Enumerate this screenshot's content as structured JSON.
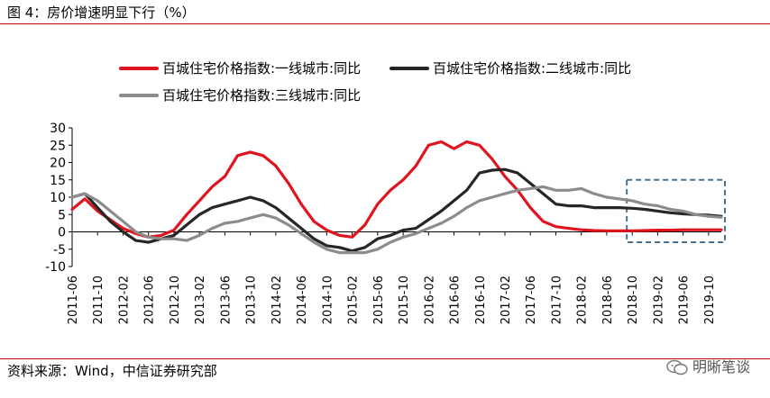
{
  "figure": {
    "title": "图 4：房价增速明显下行（%）",
    "source": "资料来源：Wind，中信证券研究部",
    "watermark": "明晰笔谈"
  },
  "chart_data": {
    "type": "line",
    "title": "",
    "xlabel": "",
    "ylabel": "",
    "ylim": [
      -10,
      30
    ],
    "yticks": [
      -10,
      -5,
      0,
      5,
      10,
      15,
      20,
      25,
      30
    ],
    "xrange": [
      "2011-06",
      "2019-12"
    ],
    "xticks": [
      "2011-06",
      "2011-10",
      "2012-02",
      "2012-06",
      "2012-10",
      "2013-02",
      "2013-06",
      "2013-10",
      "2014-02",
      "2014-06",
      "2014-10",
      "2015-02",
      "2015-06",
      "2015-10",
      "2016-02",
      "2016-06",
      "2016-10",
      "2017-02",
      "2017-06",
      "2017-10",
      "2018-02",
      "2018-06",
      "2018-10",
      "2019-02",
      "2019-06",
      "2019-10"
    ],
    "grid": false,
    "legend_position": "top",
    "highlight_box": {
      "x_from": "2018-10",
      "x_to": "2019-12",
      "y_from": -3,
      "y_to": 15,
      "style": "dashed",
      "color": "#4a7090"
    },
    "series": [
      {
        "name": "百城住宅价格指数:一线城市:同比",
        "color": "#e0141e",
        "x": [
          "2011-06",
          "2011-08",
          "2011-10",
          "2011-12",
          "2012-02",
          "2012-04",
          "2012-06",
          "2012-08",
          "2012-10",
          "2012-12",
          "2013-02",
          "2013-04",
          "2013-06",
          "2013-08",
          "2013-10",
          "2013-12",
          "2014-02",
          "2014-04",
          "2014-06",
          "2014-08",
          "2014-10",
          "2014-12",
          "2015-02",
          "2015-04",
          "2015-06",
          "2015-08",
          "2015-10",
          "2015-12",
          "2016-02",
          "2016-04",
          "2016-06",
          "2016-08",
          "2016-10",
          "2016-12",
          "2017-02",
          "2017-04",
          "2017-06",
          "2017-08",
          "2017-10",
          "2017-12",
          "2018-02",
          "2018-04",
          "2018-06",
          "2018-08",
          "2018-10",
          "2018-12",
          "2019-02",
          "2019-04",
          "2019-06",
          "2019-08",
          "2019-10",
          "2019-12"
        ],
        "values": [
          6.5,
          9.5,
          6.0,
          3.5,
          1.0,
          -0.5,
          -1.5,
          -1.0,
          0.5,
          5.0,
          9.0,
          13.0,
          16.0,
          22.0,
          23.0,
          22.0,
          19.0,
          14.0,
          8.0,
          3.0,
          0.5,
          -1.0,
          -1.5,
          2.0,
          8.0,
          12.0,
          15.0,
          19.0,
          25.0,
          26.0,
          24.0,
          26.0,
          25.0,
          21.0,
          16.0,
          12.0,
          7.0,
          3.0,
          1.5,
          1.0,
          0.6,
          0.4,
          0.3,
          0.3,
          0.3,
          0.4,
          0.5,
          0.5,
          0.6,
          0.6,
          0.6,
          0.6
        ]
      },
      {
        "name": "百城住宅价格指数:二线城市:同比",
        "color": "#262626",
        "x": [
          "2011-06",
          "2011-08",
          "2011-10",
          "2011-12",
          "2012-02",
          "2012-04",
          "2012-06",
          "2012-08",
          "2012-10",
          "2012-12",
          "2013-02",
          "2013-04",
          "2013-06",
          "2013-08",
          "2013-10",
          "2013-12",
          "2014-02",
          "2014-04",
          "2014-06",
          "2014-08",
          "2014-10",
          "2014-12",
          "2015-02",
          "2015-04",
          "2015-06",
          "2015-08",
          "2015-10",
          "2015-12",
          "2016-02",
          "2016-04",
          "2016-06",
          "2016-08",
          "2016-10",
          "2016-12",
          "2017-02",
          "2017-04",
          "2017-06",
          "2017-08",
          "2017-10",
          "2017-12",
          "2018-02",
          "2018-04",
          "2018-06",
          "2018-08",
          "2018-10",
          "2018-12",
          "2019-02",
          "2019-04",
          "2019-06",
          "2019-08",
          "2019-10",
          "2019-12"
        ],
        "values": [
          10.0,
          11.0,
          7.0,
          3.0,
          0.0,
          -2.5,
          -3.0,
          -2.0,
          -1.0,
          2.0,
          5.0,
          7.0,
          8.0,
          9.0,
          10.0,
          9.0,
          7.0,
          4.0,
          1.0,
          -2.0,
          -4.0,
          -4.5,
          -5.5,
          -4.5,
          -2.0,
          -1.0,
          0.5,
          1.0,
          3.5,
          6.0,
          9.0,
          12.0,
          17.0,
          17.8,
          18.0,
          17.0,
          14.0,
          11.0,
          8.0,
          7.5,
          7.5,
          7.0,
          7.0,
          7.0,
          6.8,
          6.5,
          6.0,
          5.5,
          5.2,
          5.0,
          4.8,
          4.5
        ]
      },
      {
        "name": "百城住宅价格指数:三线城市:同比",
        "color": "#8c8c8c",
        "x": [
          "2011-06",
          "2011-08",
          "2011-10",
          "2011-12",
          "2012-02",
          "2012-04",
          "2012-06",
          "2012-08",
          "2012-10",
          "2012-12",
          "2013-02",
          "2013-04",
          "2013-06",
          "2013-08",
          "2013-10",
          "2013-12",
          "2014-02",
          "2014-04",
          "2014-06",
          "2014-08",
          "2014-10",
          "2014-12",
          "2015-02",
          "2015-04",
          "2015-06",
          "2015-08",
          "2015-10",
          "2015-12",
          "2016-02",
          "2016-04",
          "2016-06",
          "2016-08",
          "2016-10",
          "2016-12",
          "2017-02",
          "2017-04",
          "2017-06",
          "2017-08",
          "2017-10",
          "2017-12",
          "2018-02",
          "2018-04",
          "2018-06",
          "2018-08",
          "2018-10",
          "2018-12",
          "2019-02",
          "2019-04",
          "2019-06",
          "2019-08",
          "2019-10",
          "2019-12"
        ],
        "values": [
          10.0,
          11.0,
          9.0,
          6.0,
          3.0,
          0.0,
          -1.5,
          -2.0,
          -2.0,
          -2.5,
          -1.0,
          1.0,
          2.5,
          3.0,
          4.0,
          5.0,
          4.0,
          2.0,
          -0.5,
          -3.0,
          -5.0,
          -6.0,
          -6.0,
          -6.0,
          -5.0,
          -3.0,
          -1.5,
          -0.5,
          1.0,
          2.5,
          4.5,
          7.0,
          9.0,
          10.0,
          11.0,
          12.0,
          12.5,
          13.0,
          12.0,
          12.0,
          12.5,
          11.0,
          10.0,
          9.5,
          9.0,
          8.0,
          7.5,
          6.5,
          6.0,
          5.0,
          4.5,
          4.2
        ]
      }
    ]
  }
}
